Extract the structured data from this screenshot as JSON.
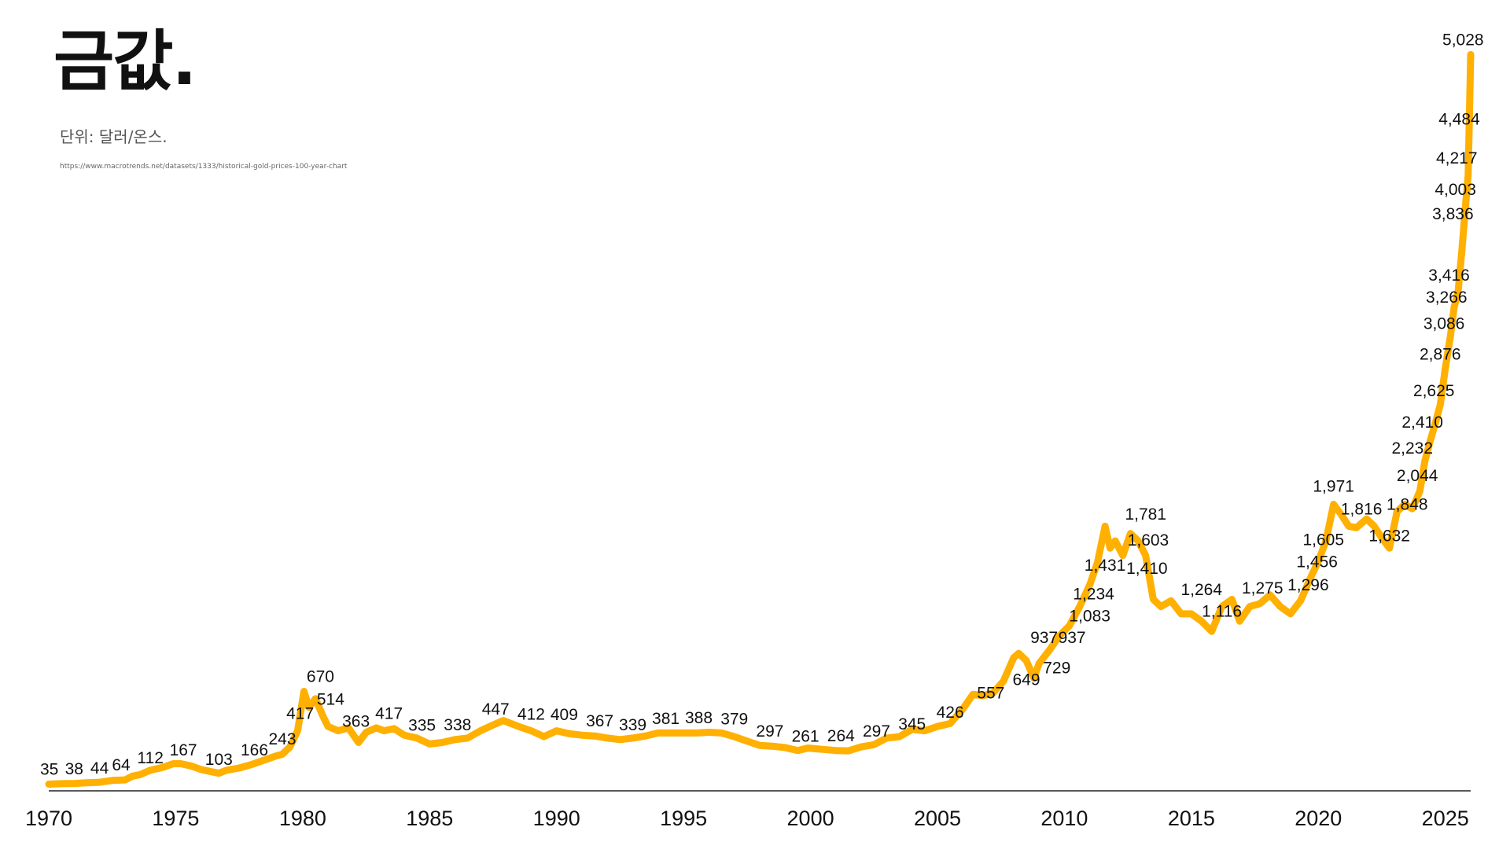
{
  "chart_data": {
    "type": "line",
    "title": "금값.",
    "subtitle": "단위: 달러/온스.",
    "source": "https://www.macrotrends.net/datasets/1333/historical-gold-prices-100-year-chart",
    "xlabel": "",
    "ylabel": "",
    "xlim": [
      1970,
      2026
    ],
    "ylim": [
      0,
      5100
    ],
    "grid": false,
    "line_color": "#FFB000",
    "x_ticks": [
      "1970",
      "1975",
      "1980",
      "1985",
      "1990",
      "1995",
      "2000",
      "2005",
      "2010",
      "2015",
      "2020",
      "2025"
    ],
    "series": [
      {
        "name": "",
        "x": [
          1970,
          1970.5,
          1971,
          1971.5,
          1972,
          1972.5,
          1973,
          1973.3,
          1973.6,
          1974,
          1974.5,
          1974.9,
          1975.2,
          1975.6,
          1976,
          1976.4,
          1976.7,
          1977,
          1977.5,
          1978,
          1978.5,
          1978.9,
          1979.2,
          1979.5,
          1979.8,
          1980.05,
          1980.25,
          1980.5,
          1980.8,
          1981,
          1981.4,
          1981.8,
          1982.2,
          1982.5,
          1982.9,
          1983.2,
          1983.6,
          1984,
          1984.5,
          1985,
          1985.5,
          1986,
          1986.5,
          1987,
          1987.5,
          1987.9,
          1988.5,
          1989,
          1989.5,
          1990,
          1990.5,
          1991,
          1991.5,
          1992,
          1992.5,
          1993,
          1993.5,
          1994,
          1994.5,
          1995,
          1995.5,
          1996,
          1996.5,
          1997,
          1997.5,
          1998,
          1998.5,
          1999,
          1999.5,
          1999.9,
          2000.5,
          2001,
          2001.5,
          2002,
          2002.5,
          2003,
          2003.5,
          2004,
          2004.5,
          2005,
          2005.5,
          2006,
          2006.4,
          2006.8,
          2007.2,
          2007.6,
          2008,
          2008.2,
          2008.5,
          2008.8,
          2009,
          2009.4,
          2009.8,
          2010.2,
          2010.6,
          2011,
          2011.3,
          2011.6,
          2011.8,
          2012,
          2012.3,
          2012.6,
          2012.9,
          2013.2,
          2013.5,
          2013.8,
          2014.2,
          2014.6,
          2015,
          2015.4,
          2015.8,
          2016.2,
          2016.6,
          2016.9,
          2017.3,
          2017.7,
          2018.1,
          2018.5,
          2018.9,
          2019.3,
          2019.7,
          2020,
          2020.3,
          2020.6,
          2020.9,
          2021.2,
          2021.5,
          2021.9,
          2022.2,
          2022.5,
          2022.8,
          2023.1,
          2023.4,
          2023.7,
          2024,
          2024.2,
          2024.4,
          2024.6,
          2024.8,
          2025,
          2025.2,
          2025.35,
          2025.5,
          2025.65,
          2025.8,
          2025.9,
          2026
        ],
        "values": [
          35,
          38,
          40,
          44,
          48,
          60,
          64,
          90,
          100,
          130,
          150,
          175,
          175,
          160,
          135,
          120,
          110,
          130,
          145,
          170,
          200,
          225,
          240,
          290,
          400,
          670,
          560,
          620,
          500,
          430,
          400,
          420,
          320,
          390,
          420,
          400,
          415,
          370,
          350,
          310,
          320,
          340,
          350,
          400,
          440,
          470,
          430,
          400,
          360,
          400,
          380,
          370,
          365,
          350,
          340,
          350,
          365,
          385,
          385,
          385,
          385,
          390,
          385,
          360,
          330,
          300,
          295,
          285,
          265,
          282,
          273,
          265,
          263,
          290,
          305,
          350,
          360,
          410,
          400,
          430,
          450,
          550,
          650,
          640,
          660,
          740,
          900,
          930,
          880,
          760,
          860,
          950,
          1050,
          1120,
          1250,
          1400,
          1550,
          1800,
          1650,
          1700,
          1600,
          1750,
          1700,
          1600,
          1300,
          1250,
          1290,
          1200,
          1200,
          1150,
          1080,
          1250,
          1300,
          1150,
          1250,
          1270,
          1330,
          1250,
          1200,
          1290,
          1450,
          1560,
          1700,
          1950,
          1880,
          1800,
          1790,
          1850,
          1800,
          1720,
          1650,
          1900,
          1950,
          1920,
          2040,
          2250,
          2380,
          2500,
          2630,
          2880,
          3100,
          3300,
          3400,
          3680,
          4000,
          4200,
          5028
        ]
      }
    ],
    "data_labels": [
      {
        "x": 1970.02,
        "y": 35,
        "text": "35"
      },
      {
        "x": 1971,
        "y": 38,
        "text": "38"
      },
      {
        "x": 1972,
        "y": 44,
        "text": "44"
      },
      {
        "x": 1972.85,
        "y": 64,
        "text": "64"
      },
      {
        "x": 1974,
        "y": 112,
        "text": "112"
      },
      {
        "x": 1975.3,
        "y": 167,
        "text": "167"
      },
      {
        "x": 1976.7,
        "y": 103,
        "text": "103"
      },
      {
        "x": 1978.1,
        "y": 166,
        "text": "166"
      },
      {
        "x": 1979.2,
        "y": 243,
        "text": "243"
      },
      {
        "x": 1979.9,
        "y": 417,
        "text": "417"
      },
      {
        "x": 1980.7,
        "y": 670,
        "text": "670"
      },
      {
        "x": 1981.1,
        "y": 514,
        "text": "514"
      },
      {
        "x": 1982.1,
        "y": 363,
        "text": "363"
      },
      {
        "x": 1983.4,
        "y": 417,
        "text": "417"
      },
      {
        "x": 1984.7,
        "y": 335,
        "text": "335"
      },
      {
        "x": 1986.1,
        "y": 338,
        "text": "338"
      },
      {
        "x": 1987.6,
        "y": 447,
        "text": "447"
      },
      {
        "x": 1989,
        "y": 412,
        "text": "412"
      },
      {
        "x": 1990.3,
        "y": 409,
        "text": "409"
      },
      {
        "x": 1991.7,
        "y": 367,
        "text": "367"
      },
      {
        "x": 1993,
        "y": 339,
        "text": "339"
      },
      {
        "x": 1994.3,
        "y": 381,
        "text": "381"
      },
      {
        "x": 1995.6,
        "y": 388,
        "text": "388"
      },
      {
        "x": 1997,
        "y": 379,
        "text": "379"
      },
      {
        "x": 1998.4,
        "y": 297,
        "text": "297"
      },
      {
        "x": 1999.8,
        "y": 261,
        "text": "261"
      },
      {
        "x": 2001.2,
        "y": 264,
        "text": "264"
      },
      {
        "x": 2002.6,
        "y": 297,
        "text": "297"
      },
      {
        "x": 2004,
        "y": 345,
        "text": "345"
      },
      {
        "x": 2005.5,
        "y": 426,
        "text": "426"
      },
      {
        "x": 2007.1,
        "y": 557,
        "text": "557"
      },
      {
        "x": 2008.5,
        "y": 649,
        "text": "649"
      },
      {
        "x": 2009.2,
        "y": 937,
        "text": "937"
      },
      {
        "x": 2010.3,
        "y": 937,
        "text": "937"
      },
      {
        "x": 2009.7,
        "y": 729,
        "text": "729"
      },
      {
        "x": 2011,
        "y": 1083,
        "text": "1,083"
      },
      {
        "x": 2011.15,
        "y": 1234,
        "text": "1,234"
      },
      {
        "x": 2011.6,
        "y": 1431,
        "text": "1,431"
      },
      {
        "x": 2013.2,
        "y": 1781,
        "text": "1,781"
      },
      {
        "x": 2013.3,
        "y": 1603,
        "text": "1,603"
      },
      {
        "x": 2013.25,
        "y": 1410,
        "text": "1,410"
      },
      {
        "x": 2015.4,
        "y": 1264,
        "text": "1,264"
      },
      {
        "x": 2016.2,
        "y": 1116,
        "text": "1,116"
      },
      {
        "x": 2017.8,
        "y": 1275,
        "text": "1,275"
      },
      {
        "x": 2019.6,
        "y": 1296,
        "text": "1,296"
      },
      {
        "x": 2019.95,
        "y": 1456,
        "text": "1,456"
      },
      {
        "x": 2020.2,
        "y": 1605,
        "text": "1,605"
      },
      {
        "x": 2020.6,
        "y": 1971,
        "text": "1,971"
      },
      {
        "x": 2021.7,
        "y": 1816,
        "text": "1,816"
      },
      {
        "x": 2022.8,
        "y": 1632,
        "text": "1,632"
      },
      {
        "x": 2023.5,
        "y": 1848,
        "text": "1,848"
      },
      {
        "x": 2023.9,
        "y": 2044,
        "text": "2,044"
      },
      {
        "x": 2023.7,
        "y": 2232,
        "text": "2,232"
      },
      {
        "x": 2024.1,
        "y": 2410,
        "text": "2,410"
      },
      {
        "x": 2024.55,
        "y": 2625,
        "text": "2,625"
      },
      {
        "x": 2024.8,
        "y": 2876,
        "text": "2,876"
      },
      {
        "x": 2024.95,
        "y": 3086,
        "text": "3,086"
      },
      {
        "x": 2025.05,
        "y": 3266,
        "text": "3,266"
      },
      {
        "x": 2025.15,
        "y": 3416,
        "text": "3,416"
      },
      {
        "x": 2025.3,
        "y": 3836,
        "text": "3,836"
      },
      {
        "x": 2025.4,
        "y": 4003,
        "text": "4,003"
      },
      {
        "x": 2025.45,
        "y": 4217,
        "text": "4,217"
      },
      {
        "x": 2025.55,
        "y": 4484,
        "text": "4,484"
      },
      {
        "x": 2025.7,
        "y": 5028,
        "text": "5,028"
      }
    ]
  }
}
